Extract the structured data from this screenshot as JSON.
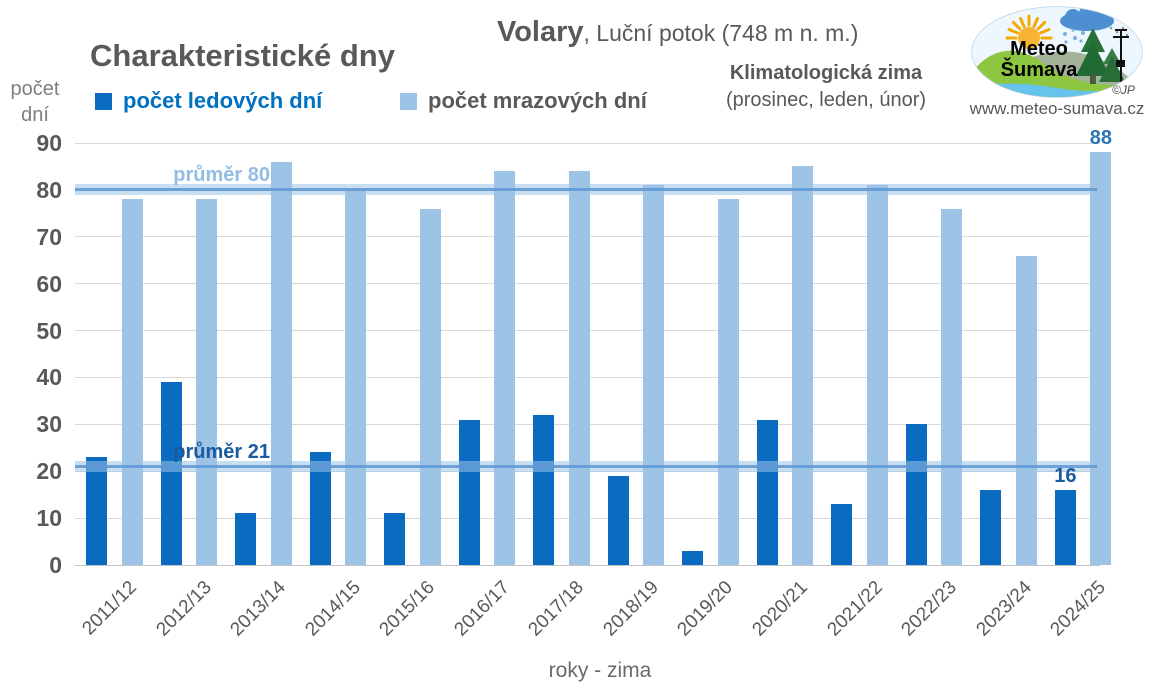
{
  "header": {
    "y_unit_line1": "počet",
    "y_unit_line2": "dní",
    "title": "Charakteristické dny",
    "station": "Volary",
    "station_suffix": ", Luční potok (748 m n. m.)",
    "season_title": "Klimatologická zima",
    "season_months": "(prosinec, leden, únor)",
    "logo": {
      "name_line1": "Meteo",
      "name_line2": "Šumava",
      "credit": "©JP",
      "website": "www.meteo-sumava.cz"
    }
  },
  "chart_data": {
    "type": "bar",
    "title": "Charakteristické dny",
    "categories": [
      "2011/12",
      "2012/13",
      "2013/14",
      "2014/15",
      "2015/16",
      "2016/17",
      "2017/18",
      "2018/19",
      "2019/20",
      "2020/21",
      "2021/22",
      "2022/23",
      "2023/24",
      "2024/25"
    ],
    "series": [
      {
        "name": "počet ledových dní",
        "color": "#0a6bc1",
        "values": [
          23,
          39,
          11,
          24,
          11,
          31,
          32,
          19,
          3,
          31,
          13,
          30,
          16,
          16
        ]
      },
      {
        "name": "počet mrazových dní",
        "color": "#9dc3e6",
        "values": [
          78,
          78,
          86,
          80,
          76,
          84,
          84,
          81,
          78,
          85,
          81,
          76,
          66,
          88
        ]
      }
    ],
    "averages": [
      {
        "label": "průměr 21",
        "value": 21,
        "label_color": "#1a5a9e"
      },
      {
        "label": "průměr 80",
        "value": 80,
        "label_color": "#93bce4"
      }
    ],
    "annotations": [
      {
        "text": "16",
        "category": "2024/25",
        "series": 0,
        "color": "#1a5a9e"
      },
      {
        "text": "88",
        "category": "2024/25",
        "series": 1,
        "color": "#2e75b6"
      }
    ],
    "xlabel": "roky - zima",
    "ylabel": "počet dní",
    "ylim": [
      0,
      90
    ],
    "ytick_step": 10,
    "grid": true,
    "legend_position": "top-left"
  }
}
